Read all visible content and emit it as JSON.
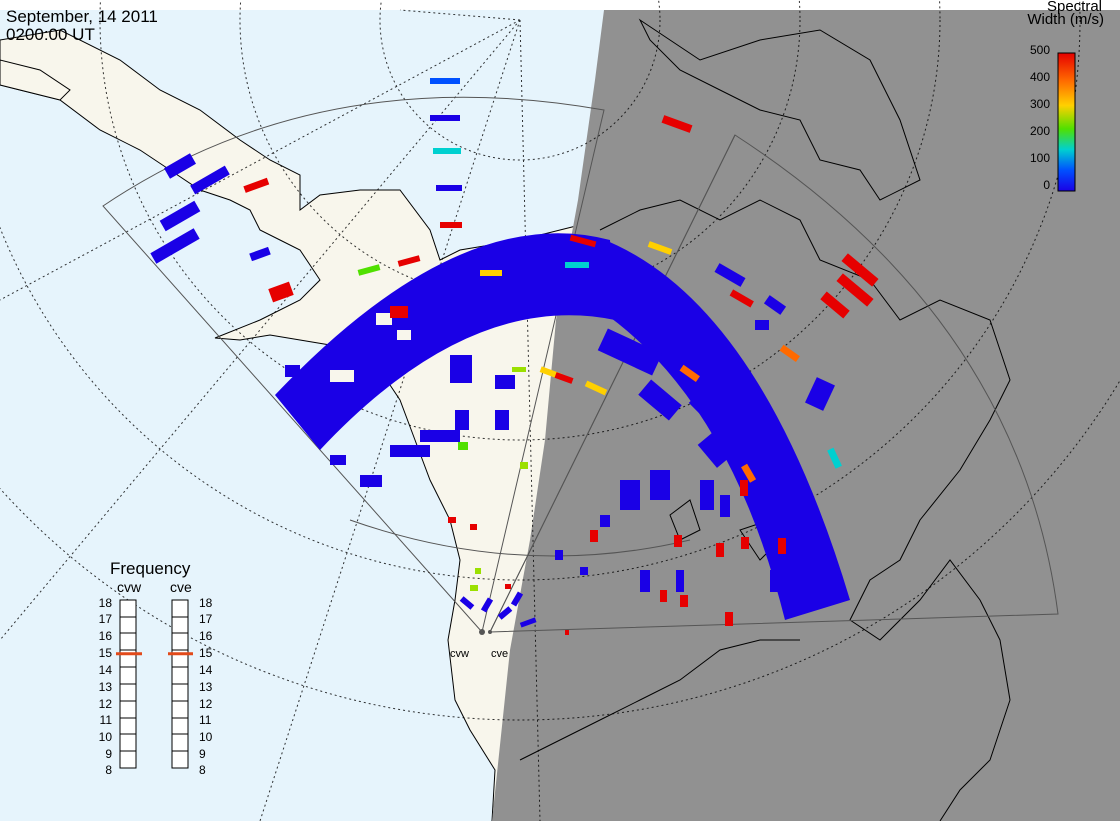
{
  "header": {
    "date": "September, 14 2011",
    "time": "0200:00 UT"
  },
  "colorbar": {
    "title_line1": "Spectral",
    "title_line2": "Width (m/s)",
    "ticks": [
      "500",
      "400",
      "300",
      "200",
      "100",
      "0"
    ],
    "colors": [
      "#e60000",
      "#ff6a00",
      "#ffd000",
      "#50e000",
      "#00d0d0",
      "#0050ff",
      "#1a00e6"
    ]
  },
  "frequency_panel": {
    "title": "Frequency",
    "radar_left": "cvw",
    "radar_right": "cve",
    "scale_values": [
      "18",
      "17",
      "16",
      "15",
      "14",
      "13",
      "12",
      "11",
      "10",
      "9",
      "8"
    ],
    "cvw_mhz": 14.8,
    "cve_mhz": 14.8,
    "indicator_color": "#e24a1a"
  },
  "radar_sites": {
    "west": "cvw",
    "east": "cve"
  },
  "map_colors": {
    "ocean": "#e6f4fc",
    "land": "#f8f6ec",
    "night": "#919191",
    "scatter_low_width": "#1a00e6"
  }
}
